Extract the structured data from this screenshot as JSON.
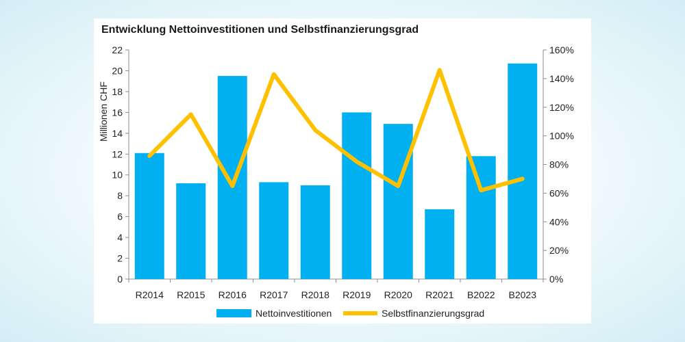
{
  "chart_data": {
    "type": "bar",
    "title": "Entwicklung Nettoinvestitionen und Selbstfinanzierungsgrad",
    "categories": [
      "R2014",
      "R2015",
      "R2016",
      "R2017",
      "R2018",
      "R2019",
      "R2020",
      "R2021",
      "B2022",
      "B2023"
    ],
    "ylabel": "Millionen CHF",
    "ylim": [
      0,
      22
    ],
    "y_ticks": [
      "0",
      "2",
      "4",
      "6",
      "8",
      "10",
      "12",
      "14",
      "16",
      "18",
      "20",
      "22"
    ],
    "y2lim": [
      0,
      160
    ],
    "y2_ticks": [
      "0%",
      "20%",
      "40%",
      "60%",
      "80%",
      "100%",
      "120%",
      "140%",
      "160%"
    ],
    "grid": false,
    "legend_position": "bottom",
    "series": [
      {
        "name": "Nettoinvestitionen",
        "type": "bar",
        "axis": "left",
        "color": "#00b0f0",
        "values": [
          12.1,
          9.2,
          19.5,
          9.3,
          9.0,
          16.0,
          14.9,
          6.7,
          11.8,
          20.7
        ]
      },
      {
        "name": "Selbstfinanzierungsgrad",
        "type": "line",
        "axis": "right",
        "unit": "%",
        "color": "#ffc000",
        "values": [
          86,
          115,
          65,
          143,
          104,
          82,
          65,
          146,
          62,
          70
        ]
      }
    ]
  }
}
